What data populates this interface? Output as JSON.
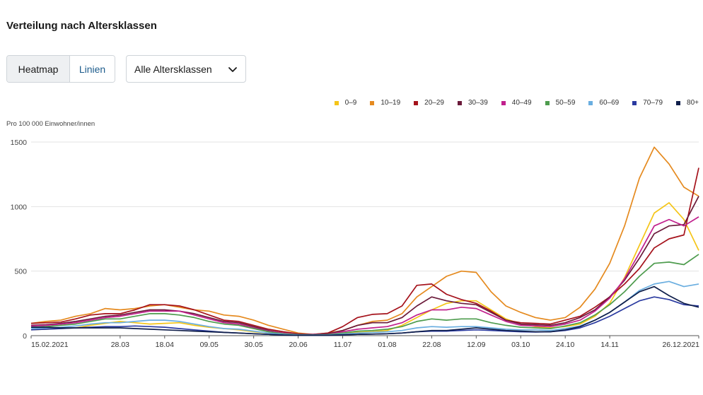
{
  "header": {
    "title": "Verteilung nach Altersklassen"
  },
  "toggle": {
    "heatmap_label": "Heatmap",
    "lines_label": "Linien"
  },
  "age_select": {
    "value": "Alle Altersklassen"
  },
  "legend": [
    {
      "name": "0–9",
      "color": "#f5c518"
    },
    {
      "name": "10–19",
      "color": "#e58a1f"
    },
    {
      "name": "20–29",
      "color": "#a5121b"
    },
    {
      "name": "30–39",
      "color": "#6b1a3a"
    },
    {
      "name": "40–49",
      "color": "#c1208d"
    },
    {
      "name": "50–59",
      "color": "#4e9c4e"
    },
    {
      "name": "60–69",
      "color": "#6aaee0"
    },
    {
      "name": "70–79",
      "color": "#2a3aa0"
    },
    {
      "name": "80+",
      "color": "#0f1e4a"
    }
  ],
  "chart_data": {
    "type": "line",
    "ylabel": "Pro 100 000 Einwohner/innen",
    "ylim": [
      0,
      1500
    ],
    "yticks": [
      0,
      500,
      1000,
      1500
    ],
    "x_tick_labels": [
      "15.02.2021",
      "28.03",
      "18.04",
      "09.05",
      "30.05",
      "20.06",
      "11.07",
      "01.08",
      "22.08",
      "12.09",
      "03.10",
      "24.10",
      "14.11",
      "26.12.2021"
    ],
    "x_tick_index": [
      0,
      6,
      9,
      12,
      15,
      18,
      21,
      24,
      27,
      30,
      33,
      36,
      39,
      45
    ],
    "x": [
      "15.02.2021",
      "22.02",
      "01.03",
      "08.03",
      "15.03",
      "22.03",
      "28.03",
      "05.04",
      "12.04",
      "18.04",
      "26.04",
      "03.05",
      "09.05",
      "17.05",
      "24.05",
      "30.05",
      "07.06",
      "14.06",
      "20.06",
      "28.06",
      "05.07",
      "11.07",
      "19.07",
      "26.07",
      "01.08",
      "09.08",
      "16.08",
      "22.08",
      "30.08",
      "06.09",
      "12.09",
      "20.09",
      "27.09",
      "03.10",
      "11.10",
      "18.10",
      "24.10",
      "01.11",
      "08.11",
      "14.11",
      "22.11",
      "29.11",
      "06.12",
      "13.12",
      "20.12",
      "26.12.2021"
    ],
    "grid": true,
    "series": [
      {
        "name": "0–9",
        "values": [
          45,
          50,
          55,
          60,
          80,
          95,
          110,
          100,
          90,
          95,
          100,
          80,
          65,
          55,
          45,
          30,
          20,
          10,
          5,
          5,
          8,
          15,
          25,
          30,
          40,
          80,
          140,
          200,
          250,
          270,
          270,
          200,
          130,
          90,
          70,
          60,
          70,
          90,
          150,
          250,
          450,
          700,
          950,
          1030,
          900,
          660
        ]
      },
      {
        "name": "10–19",
        "values": [
          95,
          110,
          120,
          150,
          170,
          210,
          200,
          210,
          230,
          240,
          220,
          200,
          190,
          160,
          150,
          120,
          80,
          50,
          20,
          10,
          20,
          40,
          80,
          110,
          120,
          170,
          300,
          380,
          460,
          500,
          490,
          340,
          230,
          180,
          140,
          120,
          140,
          220,
          360,
          560,
          850,
          1220,
          1460,
          1330,
          1150,
          1080
        ]
      },
      {
        "name": "20–29",
        "values": [
          95,
          100,
          105,
          130,
          160,
          170,
          170,
          200,
          240,
          240,
          230,
          200,
          160,
          120,
          110,
          80,
          50,
          30,
          15,
          10,
          20,
          70,
          140,
          165,
          170,
          230,
          390,
          400,
          320,
          280,
          250,
          190,
          120,
          100,
          95,
          90,
          120,
          150,
          220,
          300,
          400,
          520,
          680,
          750,
          780,
          1300
        ]
      },
      {
        "name": "30–39",
        "values": [
          80,
          85,
          95,
          110,
          130,
          150,
          160,
          180,
          200,
          200,
          190,
          170,
          140,
          110,
          100,
          70,
          40,
          20,
          10,
          10,
          15,
          40,
          80,
          100,
          100,
          140,
          230,
          300,
          270,
          250,
          240,
          180,
          120,
          90,
          85,
          80,
          100,
          140,
          200,
          300,
          430,
          600,
          790,
          850,
          860,
          1080
        ]
      },
      {
        "name": "40–49",
        "values": [
          75,
          80,
          90,
          100,
          120,
          140,
          150,
          170,
          190,
          190,
          190,
          160,
          130,
          100,
          90,
          60,
          35,
          20,
          10,
          8,
          10,
          30,
          50,
          60,
          70,
          100,
          160,
          200,
          200,
          220,
          210,
          160,
          110,
          80,
          75,
          70,
          90,
          120,
          190,
          290,
          440,
          640,
          850,
          900,
          850,
          920
        ]
      },
      {
        "name": "50–59",
        "values": [
          65,
          70,
          80,
          90,
          110,
          130,
          130,
          150,
          170,
          170,
          160,
          140,
          110,
          90,
          80,
          55,
          30,
          15,
          8,
          6,
          8,
          20,
          35,
          40,
          50,
          70,
          110,
          130,
          120,
          130,
          130,
          100,
          80,
          65,
          60,
          55,
          75,
          100,
          160,
          240,
          340,
          460,
          560,
          570,
          550,
          630
        ]
      },
      {
        "name": "60–69",
        "values": [
          55,
          60,
          65,
          75,
          90,
          100,
          100,
          110,
          120,
          120,
          110,
          90,
          70,
          55,
          50,
          35,
          20,
          10,
          5,
          5,
          5,
          12,
          20,
          25,
          30,
          40,
          60,
          70,
          65,
          70,
          70,
          60,
          50,
          45,
          45,
          40,
          55,
          75,
          120,
          180,
          260,
          350,
          400,
          420,
          380,
          400
        ]
      },
      {
        "name": "70–79",
        "values": [
          45,
          50,
          55,
          60,
          65,
          70,
          70,
          75,
          70,
          65,
          55,
          45,
          35,
          25,
          20,
          15,
          10,
          5,
          3,
          3,
          3,
          6,
          10,
          12,
          15,
          20,
          30,
          35,
          35,
          40,
          45,
          40,
          35,
          30,
          28,
          30,
          40,
          60,
          100,
          150,
          210,
          270,
          300,
          280,
          240,
          230
        ]
      },
      {
        "name": "80+",
        "values": [
          65,
          65,
          60,
          60,
          60,
          60,
          60,
          55,
          50,
          45,
          40,
          35,
          30,
          25,
          20,
          15,
          10,
          5,
          3,
          3,
          3,
          6,
          10,
          12,
          15,
          20,
          30,
          40,
          40,
          50,
          60,
          50,
          40,
          35,
          30,
          30,
          45,
          70,
          120,
          180,
          260,
          340,
          380,
          310,
          250,
          220
        ]
      }
    ]
  }
}
